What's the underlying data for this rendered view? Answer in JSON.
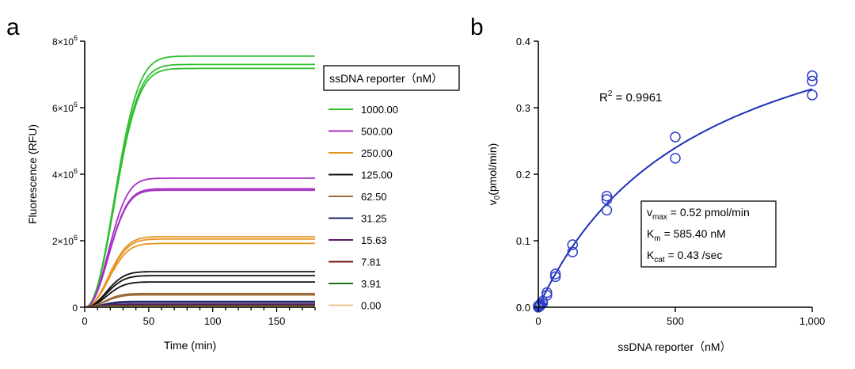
{
  "panels": {
    "a_label": "a",
    "b_label": "b"
  },
  "chart_data": [
    {
      "type": "line",
      "panel": "a",
      "xlabel": "Time (min)",
      "ylabel": "Fluorescence (RFU)",
      "xlim": [
        0,
        180
      ],
      "ylim": [
        0,
        8000000
      ],
      "xticks": [
        0,
        50,
        100,
        150
      ],
      "yticks": [
        {
          "value": 0,
          "mant": "0",
          "exp": ""
        },
        {
          "value": 2000000,
          "mant": "2×10",
          "exp": "6"
        },
        {
          "value": 4000000,
          "mant": "4×10",
          "exp": "6"
        },
        {
          "value": 6000000,
          "mant": "6×10",
          "exp": "6"
        },
        {
          "value": 8000000,
          "mant": "8×10",
          "exp": "6"
        }
      ],
      "legend_title": "ssDNA reporter（nM）",
      "legend_position": "right",
      "series": [
        {
          "name": "1000.00",
          "color": "#2fbf2f",
          "t_half": 30,
          "plateaus": [
            7550000,
            7300000,
            7180000
          ]
        },
        {
          "name": "500.00",
          "color": "#a531c4",
          "t_half": 24,
          "plateaus": [
            3880000,
            3560000,
            3520000
          ]
        },
        {
          "name": "250.00",
          "color": "#e89424",
          "t_half": 24,
          "plateaus": [
            2120000,
            2050000,
            1920000
          ]
        },
        {
          "name": "125.00",
          "color": "#111111",
          "t_half": 22,
          "plateaus": [
            1070000,
            950000,
            760000
          ]
        },
        {
          "name": "62.50",
          "color": "#9a6a38",
          "t_half": 20,
          "plateaus": [
            410000,
            390000,
            370000
          ]
        },
        {
          "name": "31.25",
          "color": "#1e2a6e",
          "t_half": 18,
          "plateaus": [
            175000,
            160000,
            150000
          ]
        },
        {
          "name": "15.63",
          "color": "#5b1a66",
          "t_half": 16,
          "plateaus": [
            95000,
            85000,
            80000
          ]
        },
        {
          "name": "7.81",
          "color": "#7a1515",
          "t_half": 14,
          "plateaus": [
            50000,
            45000,
            40000
          ]
        },
        {
          "name": "3.91",
          "color": "#1e6e1e",
          "t_half": 12,
          "plateaus": [
            30000,
            25000,
            20000
          ]
        },
        {
          "name": "0.00",
          "color": "#e5c590",
          "t_half": 10,
          "plateaus": [
            10000,
            8000,
            5000
          ]
        }
      ]
    },
    {
      "type": "scatter",
      "panel": "b",
      "xlabel": "ssDNA reporter（nM）",
      "ylabel_main": "v",
      "ylabel_sub": "0",
      "ylabel_rest": "(pmol/min)",
      "xlim": [
        0,
        1000
      ],
      "ylim": [
        0,
        0.4
      ],
      "xticks": [
        {
          "value": 0,
          "label": "0"
        },
        {
          "value": 500,
          "label": "500"
        },
        {
          "value": 1000,
          "label": "1,000"
        }
      ],
      "yticks": [
        {
          "value": 0,
          "label": "0.0"
        },
        {
          "value": 0.1,
          "label": "0.1"
        },
        {
          "value": 0.2,
          "label": "0.2"
        },
        {
          "value": 0.3,
          "label": "0.3"
        },
        {
          "value": 0.4,
          "label": "0.4"
        }
      ],
      "points": [
        [
          0,
          0
        ],
        [
          0,
          0.002
        ],
        [
          3.91,
          0.001
        ],
        [
          3.91,
          0.003
        ],
        [
          7.81,
          0.003
        ],
        [
          7.81,
          0.005
        ],
        [
          15.63,
          0.006
        ],
        [
          15.63,
          0.009
        ],
        [
          31.25,
          0.018
        ],
        [
          31.25,
          0.022
        ],
        [
          62.5,
          0.046
        ],
        [
          62.5,
          0.05
        ],
        [
          125,
          0.083
        ],
        [
          125,
          0.094
        ],
        [
          250,
          0.146
        ],
        [
          250,
          0.162
        ],
        [
          250,
          0.167
        ],
        [
          500,
          0.224
        ],
        [
          500,
          0.256
        ],
        [
          1000,
          0.319
        ],
        [
          1000,
          0.34
        ],
        [
          1000,
          0.348
        ]
      ],
      "point_color": "#2f3fc8",
      "fit": {
        "vmax": 0.52,
        "km": 585.4,
        "color": "#1f2fb8"
      },
      "r2": {
        "base": "R",
        "sup": "2",
        "rest": " = 0.9961"
      },
      "params": [
        {
          "main": "v",
          "sub": "max",
          "rest": " = 0.52 pmol/min"
        },
        {
          "main": "K",
          "sub": "m",
          "rest": " = 585.40 nM"
        },
        {
          "main": "K",
          "sub": "cat",
          "rest": " = 0.43 /sec"
        }
      ]
    }
  ]
}
